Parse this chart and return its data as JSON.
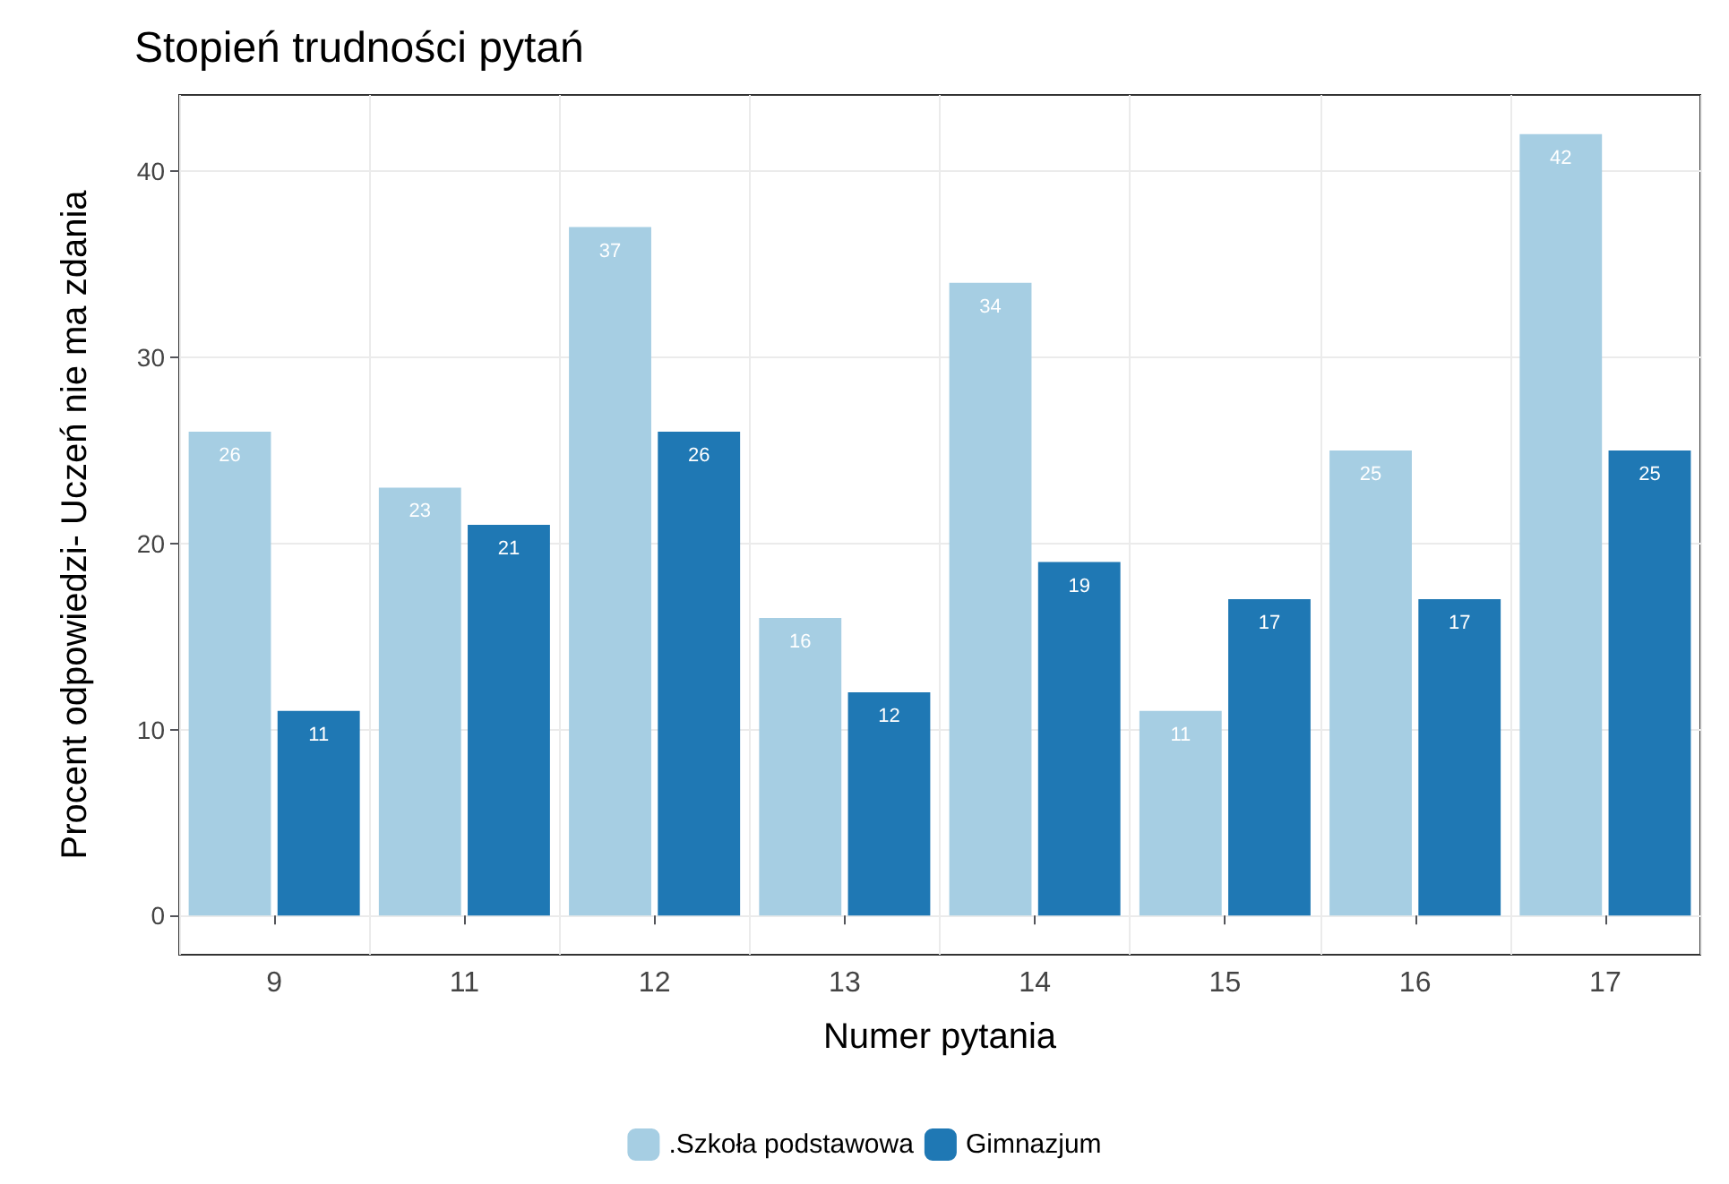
{
  "chart_data": {
    "type": "bar",
    "title": "Stopień trudności pytań",
    "xlabel": "Numer pytania",
    "ylabel": "Procent odpowiedzi- Uczeń nie ma zdania",
    "categories": [
      "9",
      "11",
      "12",
      "13",
      "14",
      "15",
      "16",
      "17"
    ],
    "series": [
      {
        "name": ".Szkoła podstawowa",
        "color": "#a6cee3",
        "values": [
          26,
          23,
          37,
          16,
          34,
          11,
          25,
          42
        ]
      },
      {
        "name": "Gimnazjum",
        "color": "#1f78b4",
        "values": [
          11,
          21,
          26,
          12,
          19,
          17,
          17,
          25
        ]
      }
    ],
    "ylim": [
      -2.1,
      44.1
    ],
    "yticks": [
      0,
      10,
      20,
      30,
      40
    ],
    "grid": true,
    "legend": "bottom",
    "data_labels": true
  }
}
